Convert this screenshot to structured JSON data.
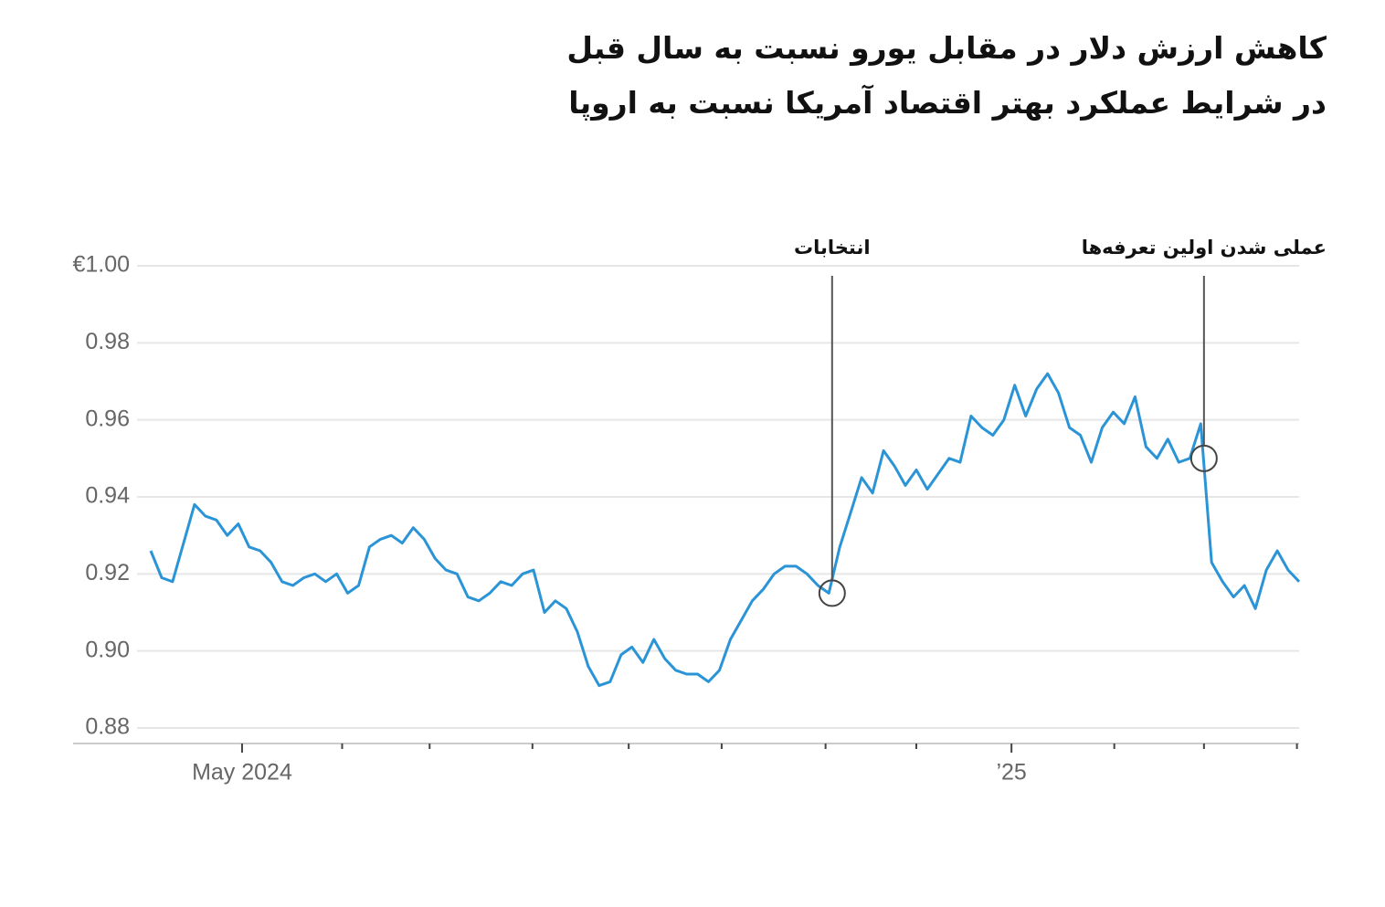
{
  "chart_data": {
    "type": "line",
    "title": [
      "کاهش ارزش دلار در مقابل یورو نسبت به سال قبل",
      "در شرایط عملکرد بهتر اقتصاد آمریکا نسبت به اروپا"
    ],
    "values": [
      0.926,
      0.919,
      0.918,
      0.928,
      0.938,
      0.935,
      0.934,
      0.93,
      0.933,
      0.927,
      0.926,
      0.923,
      0.918,
      0.917,
      0.919,
      0.92,
      0.918,
      0.92,
      0.915,
      0.917,
      0.927,
      0.929,
      0.93,
      0.928,
      0.932,
      0.929,
      0.924,
      0.921,
      0.92,
      0.914,
      0.913,
      0.915,
      0.918,
      0.917,
      0.92,
      0.921,
      0.91,
      0.913,
      0.911,
      0.905,
      0.896,
      0.891,
      0.892,
      0.899,
      0.901,
      0.897,
      0.903,
      0.898,
      0.895,
      0.894,
      0.894,
      0.892,
      0.895,
      0.903,
      0.908,
      0.913,
      0.916,
      0.92,
      0.922,
      0.922,
      0.92,
      0.917,
      0.915,
      0.927,
      0.936,
      0.945,
      0.941,
      0.952,
      0.948,
      0.943,
      0.947,
      0.942,
      0.946,
      0.95,
      0.949,
      0.961,
      0.958,
      0.956,
      0.96,
      0.969,
      0.961,
      0.968,
      0.972,
      0.967,
      0.958,
      0.956,
      0.949,
      0.958,
      0.962,
      0.959,
      0.966,
      0.953,
      0.95,
      0.955,
      0.949,
      0.95,
      0.959,
      0.923,
      0.918,
      0.914,
      0.917,
      0.911,
      0.921,
      0.926,
      0.921,
      0.918
    ],
    "color": "#2a94d6",
    "xlim": [
      0,
      105
    ],
    "xticks": [
      {
        "value": 8.35,
        "label": "May 2024"
      },
      {
        "value": 17.5,
        "label": null
      },
      {
        "value": 25.5,
        "label": null
      },
      {
        "value": 34.9,
        "label": null
      },
      {
        "value": 43.7,
        "label": null
      },
      {
        "value": 52.2,
        "label": null
      },
      {
        "value": 61.7,
        "label": null
      },
      {
        "value": 70.0,
        "label": null
      },
      {
        "value": 78.7,
        "label": "’25"
      },
      {
        "value": 88.1,
        "label": null
      },
      {
        "value": 96.3,
        "label": null
      },
      {
        "value": 104.8,
        "label": null
      }
    ],
    "ylim": [
      0.88,
      1.0
    ],
    "yticks": [
      {
        "value": 0.88,
        "label": "0.88"
      },
      {
        "value": 0.9,
        "label": "0.90"
      },
      0.92,
      0.94,
      0.96,
      0.98,
      {
        "value": 1.0,
        "label": "€1.00"
      }
    ],
    "grid": true,
    "annotations": [
      {
        "text": "انتخابات",
        "x": 62.3,
        "y": 0.915
      },
      {
        "text": "عملی شدن اولین تعرفه‌ها",
        "x": 96.3,
        "y": 0.95
      }
    ]
  }
}
